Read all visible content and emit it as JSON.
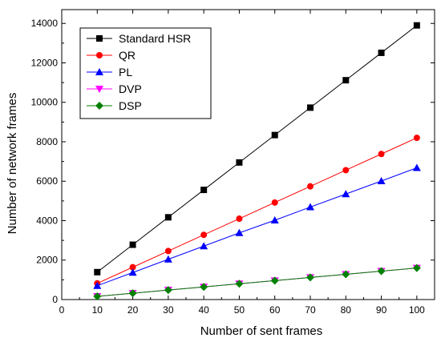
{
  "chart_data": {
    "type": "line",
    "xlabel": "Number of sent frames",
    "ylabel": "Number of network frames",
    "xlim": [
      0,
      105
    ],
    "ylim": [
      0,
      14700
    ],
    "x_ticks": [
      0,
      10,
      20,
      30,
      40,
      50,
      60,
      70,
      80,
      90,
      100
    ],
    "y_ticks": [
      0,
      2000,
      4000,
      6000,
      8000,
      10000,
      12000,
      14000
    ],
    "grid": false,
    "legend_position": "top-left",
    "x": [
      10,
      20,
      30,
      40,
      50,
      60,
      70,
      80,
      90,
      100
    ],
    "series": [
      {
        "name": "Standard HSR",
        "color": "#000000",
        "marker": "square",
        "values": [
          1390,
          2780,
          4170,
          5560,
          6950,
          8340,
          9730,
          11120,
          12510,
          13900
        ]
      },
      {
        "name": "QR",
        "color": "#ff0000",
        "marker": "circle",
        "values": [
          820,
          1640,
          2460,
          3280,
          4100,
          4920,
          5740,
          6560,
          7380,
          8200
        ]
      },
      {
        "name": "PL",
        "color": "#0000ff",
        "marker": "triangle-up",
        "values": [
          700,
          1370,
          2040,
          2710,
          3380,
          4020,
          4690,
          5350,
          6010,
          6680
        ]
      },
      {
        "name": "DVP",
        "color": "#ff00ff",
        "marker": "triangle-down",
        "values": [
          160,
          320,
          480,
          640,
          800,
          960,
          1120,
          1280,
          1440,
          1600
        ]
      },
      {
        "name": "DSP",
        "color": "#008000",
        "marker": "diamond",
        "values": [
          160,
          320,
          480,
          640,
          800,
          960,
          1120,
          1280,
          1440,
          1600
        ]
      }
    ]
  }
}
